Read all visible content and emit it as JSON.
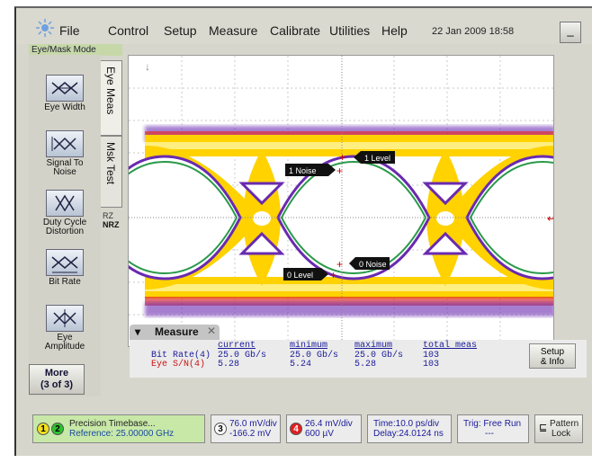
{
  "menubar": {
    "items": [
      "File",
      "Control",
      "Setup",
      "Measure",
      "Calibrate",
      "Utilities",
      "Help"
    ],
    "datetime": "22 Jan 2009  18:58",
    "minimize_label": "_"
  },
  "mode_label": "Eye/Mask Mode",
  "tools": [
    {
      "label": "Eye Width"
    },
    {
      "label": "Signal To Noise"
    },
    {
      "label": "Duty Cycle Distortion"
    },
    {
      "label": "Bit Rate"
    },
    {
      "label": "Eye Amplitude"
    }
  ],
  "more_button": {
    "line1": "More",
    "line2": "(3 of 3)"
  },
  "tabs": {
    "eye_meas": "Eye Meas",
    "msk_test": "Msk Test",
    "rz": "RZ",
    "nrz": "NRZ"
  },
  "markers": {
    "one_level": "1 Level",
    "one_noise": "1 Noise",
    "zero_noise": "0 Noise",
    "zero_level": "0 Level"
  },
  "measure": {
    "tab_label": "Measure",
    "headers": [
      "current",
      "minimum",
      "maximum",
      "total meas"
    ],
    "rows": [
      {
        "label": "Bit Rate(4)",
        "color": "#1a1a9a",
        "values": [
          "25.0 Gb/s",
          "25.0 Gb/s",
          "25.0 Gb/s",
          "103"
        ]
      },
      {
        "label": "Eye S/N(4)",
        "color": "#cc1111",
        "values": [
          "5.28",
          "5.24",
          "5.28",
          "103"
        ]
      }
    ],
    "setup_line1": "Setup",
    "setup_line2": "& Info"
  },
  "status": {
    "timebase_title": "Precision Timebase...",
    "timebase_ref": "Reference: 25.00000 GHz",
    "ch3_scale": "76.0 mV/div",
    "ch3_offset": "-166.2 mV",
    "ch4_scale": "26.4 mV/div",
    "ch4_offset": "600 µV",
    "time_div": "Time:10.0 ps/div",
    "delay": "Delay:24.0124 ns",
    "trig": "Trig: Free Run",
    "trig_sub": "---",
    "pattern_line1": "Pattern",
    "pattern_line2": "Lock",
    "chip_labels": [
      "1",
      "2",
      "3",
      "4"
    ]
  },
  "colors": {
    "ch1_chip": "#f0e020",
    "ch2_chip": "#30c030",
    "ch3_chip": "#ffffff",
    "ch4_chip": "#e02020",
    "timebase_bg": "#c8e8a8"
  }
}
